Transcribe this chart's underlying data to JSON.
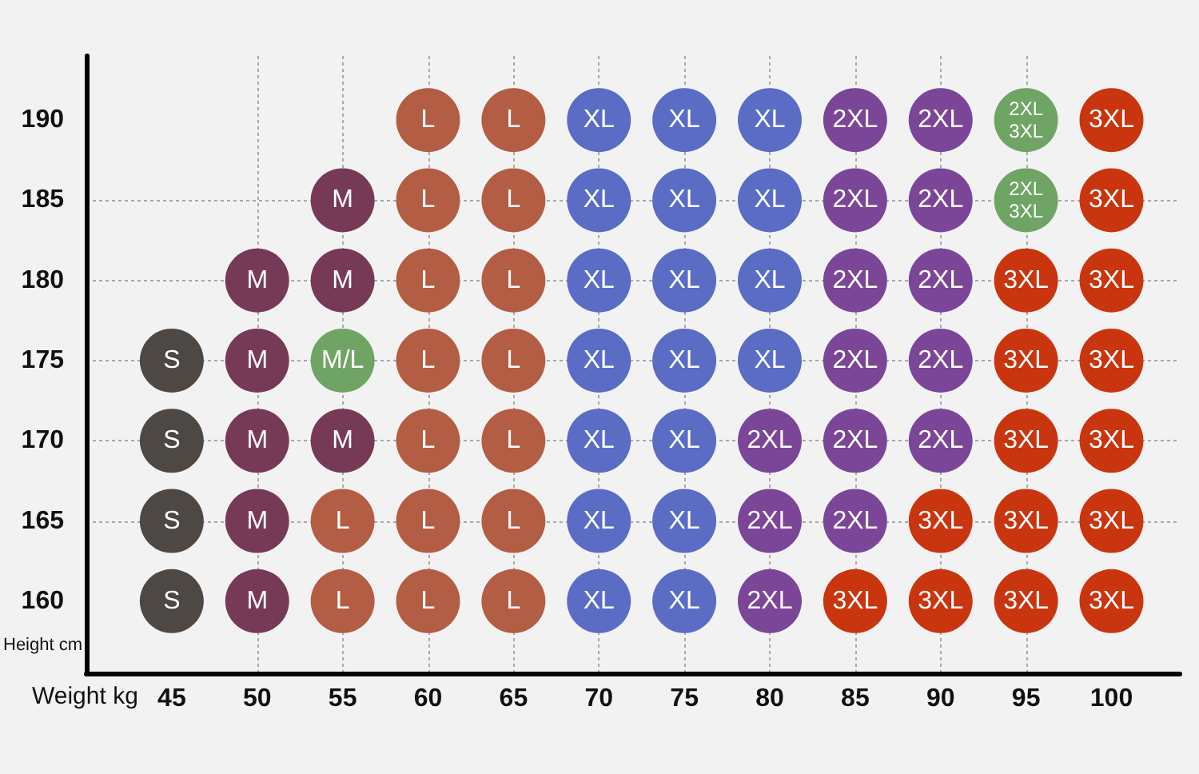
{
  "chart_data": {
    "type": "scatter",
    "xlabel": "Weight kg",
    "ylabel": "Height cm",
    "xlim": [
      40,
      104
    ],
    "xticks": [
      45,
      50,
      55,
      60,
      65,
      70,
      75,
      80,
      85,
      90,
      95,
      100
    ],
    "ylim": [
      155.5,
      194
    ],
    "yticks": [
      160,
      165,
      170,
      175,
      180,
      185,
      190
    ],
    "grid": true,
    "marker": "circle",
    "series": [
      {
        "name": "S",
        "color": "#4d4844",
        "x": [
          45,
          45,
          45,
          45
        ],
        "values": [
          175,
          170,
          165,
          160
        ]
      },
      {
        "name": "M",
        "color": "#763a56",
        "x": [
          55,
          50,
          55,
          50,
          50,
          55,
          50,
          50
        ],
        "values": [
          185,
          180,
          180,
          175,
          170,
          170,
          165,
          160
        ]
      },
      {
        "name": "M/L",
        "color": "#6fa465",
        "x": [
          55
        ],
        "values": [
          175
        ]
      },
      {
        "name": "L",
        "color": "#b35d45",
        "x": [
          60,
          65,
          60,
          65,
          60,
          65,
          60,
          65,
          60,
          65,
          55,
          60,
          65,
          55,
          60,
          65
        ],
        "values": [
          190,
          190,
          185,
          185,
          180,
          180,
          175,
          175,
          170,
          170,
          165,
          165,
          165,
          160,
          160,
          160
        ]
      },
      {
        "name": "XL",
        "color": "#5a6cc4",
        "x": [
          70,
          75,
          80,
          70,
          75,
          80,
          70,
          75,
          80,
          70,
          75,
          80,
          70,
          75,
          70,
          75,
          70,
          75
        ],
        "values": [
          190,
          190,
          190,
          185,
          185,
          185,
          180,
          180,
          180,
          175,
          175,
          175,
          170,
          170,
          165,
          165,
          160,
          160
        ]
      },
      {
        "name": "2XL",
        "color": "#7b4697",
        "x": [
          85,
          90,
          85,
          90,
          85,
          90,
          85,
          90,
          80,
          85,
          90,
          80,
          85,
          80
        ],
        "values": [
          190,
          190,
          185,
          185,
          180,
          180,
          175,
          175,
          170,
          170,
          170,
          165,
          165,
          160
        ]
      },
      {
        "name": "2XL\n3XL",
        "color": "#6fa465",
        "x": [
          95,
          95
        ],
        "values": [
          190,
          185
        ]
      },
      {
        "name": "3XL",
        "color": "#c8350f",
        "x": [
          100,
          100,
          95,
          100,
          95,
          100,
          95,
          100,
          90,
          95,
          100,
          85,
          90,
          95,
          100
        ],
        "values": [
          190,
          185,
          180,
          180,
          175,
          175,
          170,
          170,
          165,
          165,
          165,
          160,
          160,
          160,
          160
        ]
      }
    ]
  }
}
